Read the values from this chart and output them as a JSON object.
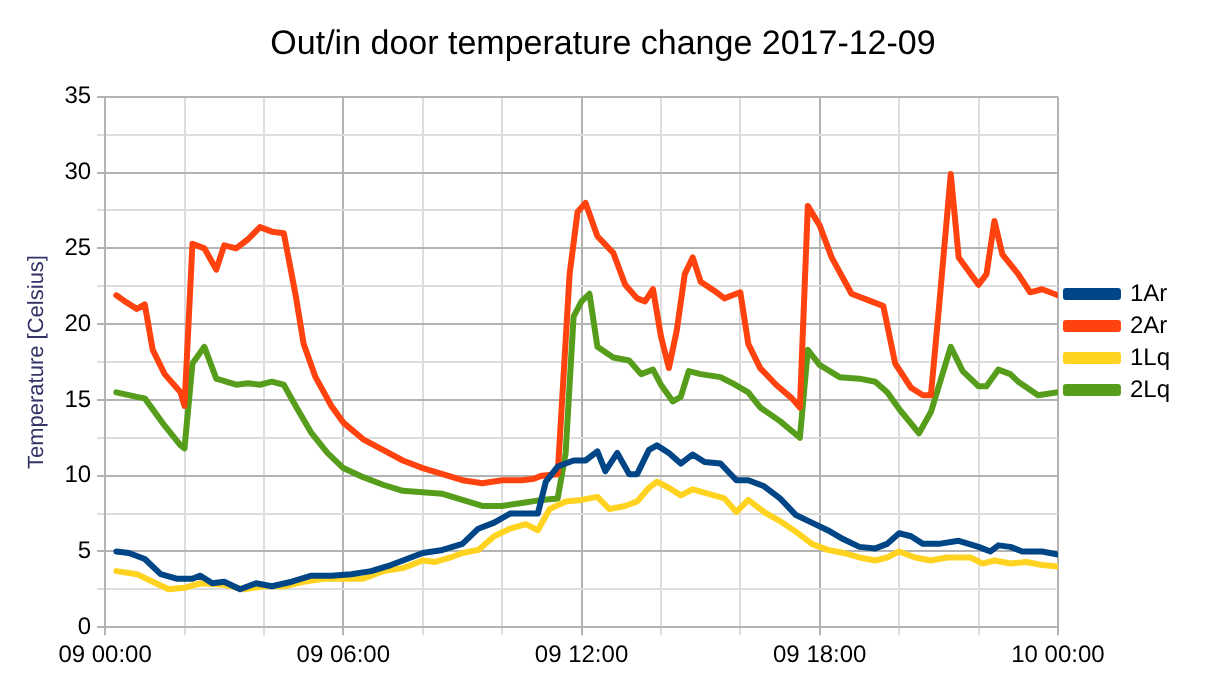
{
  "chart_data": {
    "type": "line",
    "title": "Out/in door temperature change 2017-12-09",
    "ylabel": "Temperature [Celsius]",
    "xlim": [
      "2017-12-09T00:00",
      "2017-12-10T00:00"
    ],
    "xticks": [
      {
        "value": "2017-12-09T00:00",
        "label": "09 00:00"
      },
      {
        "value": "2017-12-09T02:00",
        "label": null
      },
      {
        "value": "2017-12-09T04:00",
        "label": null
      },
      {
        "value": "2017-12-09T06:00",
        "label": "09 06:00"
      },
      {
        "value": "2017-12-09T08:00",
        "label": null
      },
      {
        "value": "2017-12-09T10:00",
        "label": null
      },
      {
        "value": "2017-12-09T12:00",
        "label": "09 12:00"
      },
      {
        "value": "2017-12-09T14:00",
        "label": null
      },
      {
        "value": "2017-12-09T16:00",
        "label": null
      },
      {
        "value": "2017-12-09T18:00",
        "label": "09 18:00"
      },
      {
        "value": "2017-12-09T20:00",
        "label": null
      },
      {
        "value": "2017-12-09T22:00",
        "label": null
      },
      {
        "value": "2017-12-10T00:00",
        "label": "10 00:00"
      }
    ],
    "ylim": [
      0,
      35
    ],
    "yticks": [
      0,
      {
        "value": 2.5,
        "label": null
      },
      5,
      {
        "value": 7.5,
        "label": null
      },
      10,
      {
        "value": 12.5,
        "label": null
      },
      15,
      {
        "value": 17.5,
        "label": null
      },
      20,
      {
        "value": 22.5,
        "label": null
      },
      25,
      {
        "value": 27.5,
        "label": null
      },
      30,
      {
        "value": 32.5,
        "label": null
      },
      35
    ],
    "grid": true,
    "legend": "right",
    "marker": "none",
    "line_style": "solid",
    "series": [
      {
        "name": "1Ar",
        "color": "#004586",
        "x": [
          "2017-12-09T00:17",
          "2017-12-09T00:36",
          "2017-12-09T01:00",
          "2017-12-09T01:24",
          "2017-12-09T01:48",
          "2017-12-09T02:12",
          "2017-12-09T02:24",
          "2017-12-09T02:42",
          "2017-12-09T03:00",
          "2017-12-09T03:24",
          "2017-12-09T03:48",
          "2017-12-09T04:12",
          "2017-12-09T04:42",
          "2017-12-09T05:12",
          "2017-12-09T05:42",
          "2017-12-09T06:12",
          "2017-12-09T06:42",
          "2017-12-09T07:12",
          "2017-12-09T07:36",
          "2017-12-09T08:00",
          "2017-12-09T08:30",
          "2017-12-09T09:00",
          "2017-12-09T09:24",
          "2017-12-09T09:48",
          "2017-12-09T10:12",
          "2017-12-09T10:36",
          "2017-12-09T10:54",
          "2017-12-09T11:06",
          "2017-12-09T11:24",
          "2017-12-09T11:48",
          "2017-12-09T12:06",
          "2017-12-09T12:24",
          "2017-12-09T12:36",
          "2017-12-09T12:54",
          "2017-12-09T13:12",
          "2017-12-09T13:24",
          "2017-12-09T13:42",
          "2017-12-09T13:54",
          "2017-12-09T14:12",
          "2017-12-09T14:30",
          "2017-12-09T14:48",
          "2017-12-09T15:06",
          "2017-12-09T15:30",
          "2017-12-09T15:54",
          "2017-12-09T16:12",
          "2017-12-09T16:36",
          "2017-12-09T17:00",
          "2017-12-09T17:24",
          "2017-12-09T17:48",
          "2017-12-09T18:12",
          "2017-12-09T18:36",
          "2017-12-09T19:00",
          "2017-12-09T19:24",
          "2017-12-09T19:42",
          "2017-12-09T20:00",
          "2017-12-09T20:18",
          "2017-12-09T20:36",
          "2017-12-09T21:00",
          "2017-12-09T21:30",
          "2017-12-09T22:00",
          "2017-12-09T22:18",
          "2017-12-09T22:30",
          "2017-12-09T22:48",
          "2017-12-09T23:06",
          "2017-12-09T23:36",
          "2017-12-10T00:00"
        ],
        "values": [
          5.0,
          4.9,
          4.5,
          3.5,
          3.2,
          3.2,
          3.4,
          2.9,
          3.0,
          2.5,
          2.9,
          2.7,
          3.0,
          3.4,
          3.4,
          3.5,
          3.7,
          4.1,
          4.5,
          4.9,
          5.1,
          5.5,
          6.5,
          6.9,
          7.5,
          7.5,
          7.5,
          9.6,
          10.6,
          11.0,
          11.0,
          11.6,
          10.3,
          11.5,
          10.1,
          10.1,
          11.7,
          12.0,
          11.5,
          10.8,
          11.4,
          10.9,
          10.8,
          9.7,
          9.7,
          9.3,
          8.5,
          7.4,
          6.9,
          6.4,
          5.8,
          5.3,
          5.2,
          5.5,
          6.2,
          6.0,
          5.5,
          5.5,
          5.7,
          5.3,
          5.0,
          5.4,
          5.3,
          5.0,
          5.0,
          4.8
        ]
      },
      {
        "name": "2Ar",
        "color": "#ff420e",
        "x": [
          "2017-12-09T00:17",
          "2017-12-09T00:30",
          "2017-12-09T00:48",
          "2017-12-09T01:00",
          "2017-12-09T01:12",
          "2017-12-09T01:30",
          "2017-12-09T01:54",
          "2017-12-09T02:00",
          "2017-12-09T02:12",
          "2017-12-09T02:30",
          "2017-12-09T02:48",
          "2017-12-09T03:00",
          "2017-12-09T03:18",
          "2017-12-09T03:36",
          "2017-12-09T03:54",
          "2017-12-09T04:12",
          "2017-12-09T04:30",
          "2017-12-09T04:48",
          "2017-12-09T05:00",
          "2017-12-09T05:18",
          "2017-12-09T05:42",
          "2017-12-09T06:00",
          "2017-12-09T06:30",
          "2017-12-09T07:00",
          "2017-12-09T07:30",
          "2017-12-09T08:00",
          "2017-12-09T08:30",
          "2017-12-09T09:00",
          "2017-12-09T09:30",
          "2017-12-09T10:00",
          "2017-12-09T10:30",
          "2017-12-09T10:48",
          "2017-12-09T11:00",
          "2017-12-09T11:24",
          "2017-12-09T11:42",
          "2017-12-09T11:54",
          "2017-12-09T12:06",
          "2017-12-09T12:24",
          "2017-12-09T12:48",
          "2017-12-09T13:06",
          "2017-12-09T13:24",
          "2017-12-09T13:36",
          "2017-12-09T13:48",
          "2017-12-09T14:00",
          "2017-12-09T14:12",
          "2017-12-09T14:24",
          "2017-12-09T14:36",
          "2017-12-09T14:48",
          "2017-12-09T15:00",
          "2017-12-09T15:24",
          "2017-12-09T15:36",
          "2017-12-09T15:48",
          "2017-12-09T16:00",
          "2017-12-09T16:12",
          "2017-12-09T16:30",
          "2017-12-09T16:54",
          "2017-12-09T17:18",
          "2017-12-09T17:30",
          "2017-12-09T17:42",
          "2017-12-09T18:00",
          "2017-12-09T18:18",
          "2017-12-09T18:48",
          "2017-12-09T19:18",
          "2017-12-09T19:36",
          "2017-12-09T19:54",
          "2017-12-09T20:18",
          "2017-12-09T20:36",
          "2017-12-09T20:48",
          "2017-12-09T21:00",
          "2017-12-09T21:18",
          "2017-12-09T21:30",
          "2017-12-09T22:00",
          "2017-12-09T22:12",
          "2017-12-09T22:24",
          "2017-12-09T22:36",
          "2017-12-09T23:00",
          "2017-12-09T23:18",
          "2017-12-09T23:36",
          "2017-12-10T00:00"
        ],
        "values": [
          21.9,
          21.5,
          21.0,
          21.3,
          18.3,
          16.7,
          15.5,
          14.6,
          25.3,
          25.0,
          23.6,
          25.2,
          25.0,
          25.6,
          26.4,
          26.1,
          26.0,
          21.9,
          18.7,
          16.5,
          14.6,
          13.5,
          12.4,
          11.7,
          11.0,
          10.5,
          10.1,
          9.7,
          9.5,
          9.7,
          9.7,
          9.8,
          10.0,
          10.1,
          23.3,
          27.4,
          28.0,
          25.8,
          24.7,
          22.6,
          21.7,
          21.5,
          22.3,
          19.2,
          17.1,
          19.6,
          23.3,
          24.4,
          22.8,
          22.1,
          21.7,
          21.9,
          22.1,
          18.7,
          17.1,
          16.0,
          15.1,
          14.5,
          27.8,
          26.5,
          24.4,
          22.0,
          21.5,
          21.2,
          17.4,
          15.8,
          15.3,
          15.3,
          21.0,
          29.9,
          24.4,
          22.6,
          23.3,
          26.8,
          24.6,
          23.3,
          22.1,
          22.3,
          21.9
        ]
      },
      {
        "name": "1Lq",
        "color": "#ffd320",
        "x": [
          "2017-12-09T00:17",
          "2017-12-09T00:48",
          "2017-12-09T01:12",
          "2017-12-09T01:36",
          "2017-12-09T02:00",
          "2017-12-09T02:24",
          "2017-12-09T03:00",
          "2017-12-09T03:30",
          "2017-12-09T04:00",
          "2017-12-09T04:30",
          "2017-12-09T05:00",
          "2017-12-09T05:30",
          "2017-12-09T06:00",
          "2017-12-09T06:30",
          "2017-12-09T07:00",
          "2017-12-09T07:30",
          "2017-12-09T08:00",
          "2017-12-09T08:18",
          "2017-12-09T08:42",
          "2017-12-09T09:00",
          "2017-12-09T09:24",
          "2017-12-09T09:48",
          "2017-12-09T10:12",
          "2017-12-09T10:36",
          "2017-12-09T10:54",
          "2017-12-09T11:12",
          "2017-12-09T11:36",
          "2017-12-09T12:00",
          "2017-12-09T12:24",
          "2017-12-09T12:42",
          "2017-12-09T13:06",
          "2017-12-09T13:24",
          "2017-12-09T13:42",
          "2017-12-09T13:54",
          "2017-12-09T14:12",
          "2017-12-09T14:30",
          "2017-12-09T14:48",
          "2017-12-09T15:12",
          "2017-12-09T15:36",
          "2017-12-09T15:54",
          "2017-12-09T16:12",
          "2017-12-09T16:36",
          "2017-12-09T17:00",
          "2017-12-09T17:24",
          "2017-12-09T17:48",
          "2017-12-09T18:12",
          "2017-12-09T18:36",
          "2017-12-09T19:00",
          "2017-12-09T19:24",
          "2017-12-09T19:42",
          "2017-12-09T20:00",
          "2017-12-09T20:24",
          "2017-12-09T20:48",
          "2017-12-09T21:12",
          "2017-12-09T21:48",
          "2017-12-09T22:06",
          "2017-12-09T22:24",
          "2017-12-09T22:48",
          "2017-12-09T23:12",
          "2017-12-09T23:36",
          "2017-12-10T00:00"
        ],
        "values": [
          3.7,
          3.5,
          3.0,
          2.5,
          2.6,
          2.9,
          2.8,
          2.5,
          2.7,
          2.7,
          3.0,
          3.2,
          3.2,
          3.2,
          3.7,
          3.9,
          4.4,
          4.3,
          4.6,
          4.9,
          5.1,
          6.0,
          6.5,
          6.8,
          6.4,
          7.8,
          8.3,
          8.4,
          8.6,
          7.8,
          8.0,
          8.3,
          9.2,
          9.6,
          9.2,
          8.7,
          9.1,
          8.8,
          8.5,
          7.6,
          8.4,
          7.6,
          7.0,
          6.3,
          5.5,
          5.1,
          4.9,
          4.6,
          4.4,
          4.6,
          5.0,
          4.6,
          4.4,
          4.6,
          4.6,
          4.2,
          4.4,
          4.2,
          4.3,
          4.1,
          4.0
        ]
      },
      {
        "name": "2Lq",
        "color": "#579d1c",
        "x": [
          "2017-12-09T00:17",
          "2017-12-09T00:48",
          "2017-12-09T01:00",
          "2017-12-09T01:30",
          "2017-12-09T01:54",
          "2017-12-09T02:00",
          "2017-12-09T02:12",
          "2017-12-09T02:30",
          "2017-12-09T02:48",
          "2017-12-09T03:18",
          "2017-12-09T03:36",
          "2017-12-09T03:54",
          "2017-12-09T04:12",
          "2017-12-09T04:30",
          "2017-12-09T04:48",
          "2017-12-09T05:12",
          "2017-12-09T05:36",
          "2017-12-09T06:00",
          "2017-12-09T06:30",
          "2017-12-09T07:00",
          "2017-12-09T07:30",
          "2017-12-09T08:00",
          "2017-12-09T08:30",
          "2017-12-09T09:00",
          "2017-12-09T09:30",
          "2017-12-09T10:00",
          "2017-12-09T10:30",
          "2017-12-09T11:00",
          "2017-12-09T11:24",
          "2017-12-09T11:36",
          "2017-12-09T11:48",
          "2017-12-09T12:00",
          "2017-12-09T12:12",
          "2017-12-09T12:24",
          "2017-12-09T12:48",
          "2017-12-09T13:12",
          "2017-12-09T13:30",
          "2017-12-09T13:48",
          "2017-12-09T14:00",
          "2017-12-09T14:18",
          "2017-12-09T14:30",
          "2017-12-09T14:42",
          "2017-12-09T15:00",
          "2017-12-09T15:30",
          "2017-12-09T15:48",
          "2017-12-09T16:12",
          "2017-12-09T16:30",
          "2017-12-09T17:00",
          "2017-12-09T17:30",
          "2017-12-09T17:42",
          "2017-12-09T18:00",
          "2017-12-09T18:30",
          "2017-12-09T19:00",
          "2017-12-09T19:24",
          "2017-12-09T19:42",
          "2017-12-09T20:00",
          "2017-12-09T20:30",
          "2017-12-09T20:48",
          "2017-12-09T21:18",
          "2017-12-09T21:36",
          "2017-12-09T22:00",
          "2017-12-09T22:12",
          "2017-12-09T22:30",
          "2017-12-09T22:48",
          "2017-12-09T23:00",
          "2017-12-09T23:30",
          "2017-12-10T00:00"
        ],
        "values": [
          15.5,
          15.2,
          15.1,
          13.3,
          12.0,
          11.8,
          17.4,
          18.5,
          16.4,
          16.0,
          16.1,
          16.0,
          16.2,
          16.0,
          14.6,
          12.8,
          11.5,
          10.5,
          9.9,
          9.4,
          9.0,
          8.9,
          8.8,
          8.4,
          8.0,
          8.0,
          8.2,
          8.4,
          8.5,
          11.5,
          20.5,
          21.5,
          22.0,
          18.5,
          17.8,
          17.6,
          16.7,
          17.0,
          16.0,
          14.9,
          15.2,
          16.9,
          16.7,
          16.5,
          16.1,
          15.5,
          14.5,
          13.6,
          12.5,
          18.3,
          17.3,
          16.5,
          16.4,
          16.2,
          15.5,
          14.4,
          12.8,
          14.2,
          18.5,
          16.9,
          15.9,
          15.9,
          17.0,
          16.7,
          16.2,
          15.3,
          15.5
        ]
      }
    ]
  }
}
